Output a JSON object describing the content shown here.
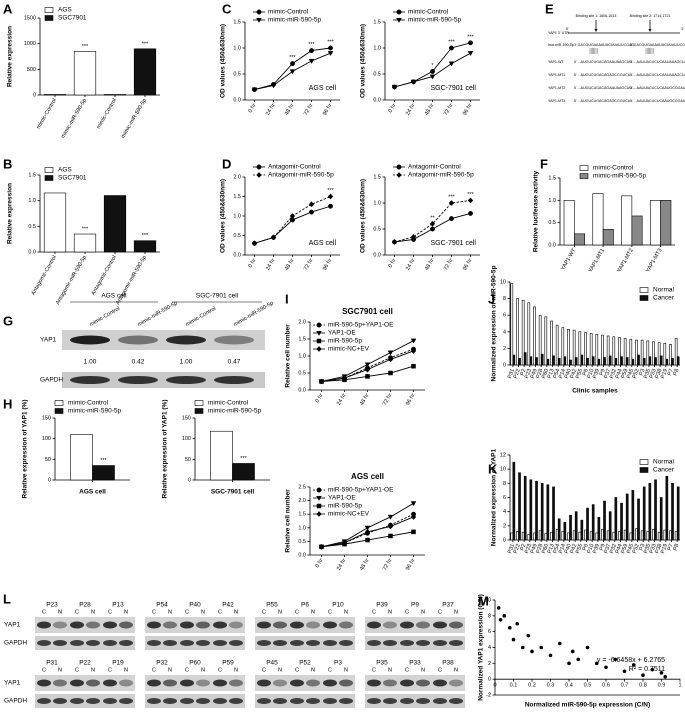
{
  "chart_data": [
    {
      "type": "bar",
      "panel": "A",
      "ylabel": "Relative expression",
      "categories": [
        "mimic-Control",
        "mimic-miR-590-5p",
        "mimic-Control",
        "mimic-miR-590-5p"
      ],
      "series": [
        {
          "name": "AGS",
          "color": "#ffffff",
          "values": [
            10,
            850,
            null,
            null
          ],
          "stars": [
            null,
            "***",
            null,
            null
          ]
        },
        {
          "name": "SGC7901",
          "color": "#111111",
          "values": [
            null,
            null,
            10,
            900
          ],
          "stars": [
            null,
            null,
            null,
            "***"
          ]
        }
      ],
      "ylim": [
        0,
        1500
      ],
      "yticks": [
        0,
        500,
        1000,
        1500
      ]
    },
    {
      "type": "bar",
      "panel": "B",
      "ylabel": "Relative expression",
      "categories": [
        "Antagomir-Control",
        "Antagomir-miR-590-5p",
        "Antagomir-Control",
        "Antagomir-miR-590-5p"
      ],
      "series": [
        {
          "name": "AGS",
          "color": "#ffffff",
          "values": [
            1.15,
            0.35,
            null,
            null
          ],
          "stars": [
            null,
            "***",
            null,
            null
          ]
        },
        {
          "name": "SGC7901",
          "color": "#111111",
          "values": [
            null,
            null,
            1.1,
            0.22
          ],
          "stars": [
            null,
            null,
            null,
            "***"
          ]
        }
      ],
      "ylim": [
        0,
        1.5
      ],
      "yticks": [
        {
          "value": 0,
          "label": "0.0"
        },
        0.5,
        {
          "value": 1,
          "label": "1.0"
        },
        1.5
      ]
    },
    {
      "type": "line",
      "panel": "C",
      "ylabel": "OD values (450&630nm)",
      "annotation": "AGS cell",
      "categories": [
        "0 hr",
        "24 hr",
        "48 hr",
        "72 hr",
        "96 hr"
      ],
      "series": [
        {
          "name": "mimic-Control",
          "color": "#000000",
          "marker": "circle",
          "values": [
            0.2,
            0.3,
            0.7,
            0.95,
            1.0
          ],
          "stars": [
            null,
            null,
            "***",
            "***",
            "***"
          ]
        },
        {
          "name": "mimic-miR-590-5p",
          "color": "#000000",
          "marker": "triangle",
          "values": [
            0.2,
            0.28,
            0.55,
            0.75,
            0.9
          ]
        }
      ],
      "ylim": [
        0,
        1.5
      ],
      "yticks": [
        {
          "value": 0,
          "label": "0.0"
        },
        0.5,
        {
          "value": 1,
          "label": "1.0"
        },
        1.5
      ]
    },
    {
      "type": "line",
      "ylabel": "OD values (450&630nm)",
      "annotation": "SGC-7901 cell",
      "categories": [
        "0 hr",
        "24 hr",
        "48 hr",
        "72 hr",
        "96 hr"
      ],
      "series": [
        {
          "name": "mimic-Control",
          "color": "#000000",
          "marker": "circle",
          "values": [
            0.25,
            0.35,
            0.55,
            1.0,
            1.1
          ],
          "stars": [
            null,
            null,
            "*",
            "***",
            "***"
          ]
        },
        {
          "name": "mimic-miR-590-5p",
          "color": "#000000",
          "marker": "triangle",
          "values": [
            0.25,
            0.35,
            0.45,
            0.7,
            0.9
          ]
        }
      ],
      "ylim": [
        0,
        1.5
      ],
      "yticks": [
        {
          "value": 0,
          "label": "0.0"
        },
        0.5,
        {
          "value": 1,
          "label": "1.0"
        },
        1.5
      ]
    },
    {
      "type": "line",
      "panel": "D",
      "ylabel": "OD values (450&630nm)",
      "annotation": "AGS cell",
      "categories": [
        "0 hr",
        "24 hr",
        "48 hr",
        "72 hr",
        "96 hr"
      ],
      "series": [
        {
          "name": "Antagomir-Control",
          "color": "#000000",
          "marker": "circle",
          "values": [
            0.3,
            0.45,
            0.9,
            1.1,
            1.25
          ]
        },
        {
          "name": "Antagomir-miR-590-5p",
          "color": "#000000",
          "marker": "diamond",
          "dash": true,
          "values": [
            0.3,
            0.45,
            1.0,
            1.3,
            1.5
          ],
          "stars": [
            null,
            null,
            null,
            null,
            "***"
          ]
        }
      ],
      "ylim": [
        0,
        2
      ],
      "yticks": [
        {
          "value": 0,
          "label": "0.0"
        },
        0.5,
        {
          "value": 1,
          "label": "1.0"
        },
        1.5,
        {
          "value": 2,
          "label": "2.0"
        }
      ]
    },
    {
      "type": "line",
      "ylabel": "OD values (450&630nm)",
      "annotation": "SGC-7901 cell",
      "categories": [
        "0 hr",
        "24 hr",
        "48 hr",
        "72 hr",
        "96 hr"
      ],
      "series": [
        {
          "name": "Antagomir-Control",
          "color": "#000000",
          "marker": "circle",
          "values": [
            0.25,
            0.3,
            0.5,
            0.7,
            0.8
          ]
        },
        {
          "name": "Antagomir-miR-590-5p",
          "color": "#000000",
          "marker": "diamond",
          "dash": true,
          "values": [
            0.25,
            0.35,
            0.6,
            1.0,
            1.05
          ],
          "stars": [
            null,
            null,
            "**",
            "***",
            "***"
          ]
        }
      ],
      "ylim": [
        0,
        1.5
      ],
      "yticks": [
        {
          "value": 0,
          "label": "0.0"
        },
        0.5,
        {
          "value": 1,
          "label": "1.0"
        },
        1.5
      ]
    },
    {
      "type": "bar",
      "panel": "F",
      "ylabel": "Relative luciferase activity",
      "categories": [
        "YAP1-WT",
        "YAP1-MT1",
        "YAP1-MT2",
        "YAP1-MT3"
      ],
      "series": [
        {
          "name": "mimic-Control",
          "color": "#ffffff",
          "values": [
            1.0,
            1.15,
            1.1,
            1.0
          ]
        },
        {
          "name": "mimic-miR-590-5p",
          "color": "#888888",
          "values": [
            0.25,
            0.35,
            0.65,
            1.0
          ]
        }
      ],
      "ylim": [
        0,
        1.5
      ],
      "yticks": [
        {
          "value": 0,
          "label": "0.0"
        },
        0.5,
        {
          "value": 1,
          "label": "1.0"
        },
        1.5
      ]
    },
    {
      "type": "bar",
      "panel": "H",
      "ylabel": "Relative expression of YAP1 (%)",
      "xlabel": "AGS cell",
      "categories": [
        null
      ],
      "series": [
        {
          "name": "mimic-Control",
          "color": "#ffffff",
          "values": [
            110
          ]
        },
        {
          "name": "mimic-miR-590-5p",
          "color": "#111111",
          "values": [
            35
          ],
          "stars": [
            "***"
          ]
        }
      ],
      "ylim": [
        0,
        150
      ],
      "yticks": [
        0,
        50,
        100,
        150
      ]
    },
    {
      "type": "bar",
      "ylabel": "Relative expression of YAP1 (%)",
      "xlabel": "SGC-7901 cell",
      "categories": [
        null
      ],
      "series": [
        {
          "name": "mimic-Control",
          "color": "#ffffff",
          "values": [
            118
          ]
        },
        {
          "name": "mimic-miR-590-5p",
          "color": "#111111",
          "values": [
            40
          ],
          "stars": [
            "***"
          ]
        }
      ],
      "ylim": [
        0,
        150
      ],
      "yticks": [
        0,
        50,
        100,
        150
      ]
    },
    {
      "type": "line",
      "panel": "I",
      "title": "SGC7901 cell",
      "ylabel": "Relative cell number",
      "categories": [
        "0 hr",
        "24 hr",
        "48 hr",
        "72 hr",
        "96 hr"
      ],
      "series": [
        {
          "name": "miR-590-5p+YAP1-OE",
          "color": "#000000",
          "marker": "circle",
          "dash": true,
          "values": [
            0.25,
            0.35,
            0.65,
            0.95,
            1.2
          ]
        },
        {
          "name": "YAP1-OE",
          "color": "#000000",
          "marker": "triangle",
          "values": [
            0.25,
            0.4,
            0.75,
            1.1,
            1.45
          ]
        },
        {
          "name": "miR-590-5p",
          "color": "#000000",
          "marker": "square",
          "values": [
            0.25,
            0.3,
            0.4,
            0.5,
            0.7
          ]
        },
        {
          "name": "mimic-NC+EV",
          "color": "#000000",
          "marker": "diamond",
          "values": [
            0.25,
            0.35,
            0.6,
            0.9,
            1.15
          ]
        }
      ],
      "ylim": [
        0,
        2
      ],
      "yticks": [
        {
          "value": 0,
          "label": "0.0"
        },
        0.5,
        {
          "value": 1,
          "label": "1.0"
        },
        1.5,
        {
          "value": 2,
          "label": "2.0"
        }
      ]
    },
    {
      "type": "line",
      "title": "AGS cell",
      "ylabel": "Relative cell number",
      "categories": [
        "0 hr",
        "24 hr",
        "48 hr",
        "72 hr",
        "96 hr"
      ],
      "series": [
        {
          "name": "miR-590-5p+YAP1-OE",
          "color": "#000000",
          "marker": "circle",
          "dash": true,
          "values": [
            0.3,
            0.45,
            0.8,
            1.1,
            1.5
          ]
        },
        {
          "name": "YAP1-OE",
          "color": "#000000",
          "marker": "triangle",
          "values": [
            0.3,
            0.5,
            1.0,
            1.4,
            1.9
          ]
        },
        {
          "name": "miR-590-5p",
          "color": "#000000",
          "marker": "square",
          "values": [
            0.3,
            0.4,
            0.55,
            0.7,
            0.85
          ]
        },
        {
          "name": "mimic-NC+EV",
          "color": "#000000",
          "marker": "diamond",
          "values": [
            0.3,
            0.45,
            0.85,
            1.05,
            1.4
          ]
        }
      ],
      "ylim": [
        0,
        2.5
      ],
      "yticks": [
        {
          "value": 0,
          "label": "0.0"
        },
        0.5,
        {
          "value": 1,
          "label": "1.0"
        },
        1.5,
        {
          "value": 2,
          "label": "2.0"
        },
        2.5
      ]
    },
    {
      "type": "bar",
      "panel": "J",
      "ylabel": "Normalized expression of miR-590-5p",
      "xlabel": "Clinic samples",
      "categories": [
        "P31",
        "P22",
        "P2",
        "P23",
        "P49",
        "P28",
        "P60",
        "P13",
        "P54",
        "P14",
        "P40",
        "P42",
        "P55",
        "P6",
        "P10",
        "P39",
        "P9",
        "P37",
        "P32",
        "P44",
        "P59",
        "P45",
        "P52",
        "P3",
        "P35",
        "P33",
        "P38",
        "P19",
        "P7",
        "P8"
      ],
      "series": [
        {
          "name": "Normal",
          "color": "#ffffff",
          "values": [
            9.8,
            8.0,
            7.8,
            7.5,
            7.0,
            6.0,
            5.8,
            5.3,
            4.8,
            4.5,
            4.3,
            4.2,
            4.0,
            3.9,
            3.8,
            3.7,
            3.6,
            3.5,
            3.4,
            3.3,
            3.2,
            3.1,
            3.0,
            3.0,
            2.9,
            2.8,
            2.7,
            2.6,
            2.5,
            3.2
          ]
        },
        {
          "name": "Cancer",
          "color": "#111111",
          "values": [
            1.2,
            0.8,
            1.5,
            1.0,
            0.9,
            1.3,
            0.7,
            1.1,
            0.8,
            1.0,
            0.6,
            0.9,
            1.2,
            0.8,
            1.0,
            0.7,
            0.9,
            1.1,
            0.8,
            1.0,
            0.9,
            0.7,
            1.2,
            0.8,
            1.0,
            0.9,
            1.1,
            0.7,
            0.8,
            1.0
          ]
        }
      ],
      "ylim": [
        0,
        10
      ],
      "yticks": [
        0,
        2,
        4,
        6,
        8,
        10
      ]
    },
    {
      "type": "bar",
      "panel": "K",
      "ylabel": "Normalized expression of YAP1",
      "categories": [
        "P31",
        "P22",
        "P2",
        "P23",
        "P49",
        "P28",
        "P60",
        "P13",
        "P54",
        "P14",
        "P40",
        "P42",
        "P55",
        "P6",
        "P10",
        "P39",
        "P9",
        "P37",
        "P32",
        "P44",
        "P59",
        "P45",
        "P52",
        "P3",
        "P35",
        "P33",
        "P38",
        "P19",
        "P7",
        "P8"
      ],
      "series": [
        {
          "name": "Normal",
          "color": "#ffffff",
          "values": [
            1,
            1.2,
            1.1,
            0.8,
            1,
            1.3,
            0.9,
            1.1,
            1.5,
            1.2,
            1,
            1.3,
            1.1,
            1.4,
            1.2,
            1,
            1.5,
            1.3,
            1.1,
            1.2,
            1.4,
            1,
            1.6,
            1.3,
            1.2,
            1.5,
            1.1,
            1.4,
            1.3,
            1.2
          ]
        },
        {
          "name": "Cancer",
          "color": "#111111",
          "values": [
            11,
            9.5,
            9,
            8.5,
            8.3,
            8,
            7.8,
            7.5,
            3,
            2.5,
            3.5,
            4,
            2.8,
            4.5,
            5,
            3.2,
            5.5,
            4,
            6,
            5.2,
            6.5,
            7,
            5.8,
            7.5,
            8,
            8.5,
            6,
            9,
            8,
            7.5
          ]
        }
      ],
      "ylim": [
        0,
        12
      ],
      "yticks": [
        0,
        2,
        4,
        6,
        8,
        10,
        12
      ]
    },
    {
      "type": "scatter",
      "panel": "M",
      "xlabel": "Normalized miR-590-5p expression (C/N)",
      "ylabel": "Normalized YAP1 expression (C/N)",
      "annotation": "y = -6.6458x + 6.2765",
      "annotation2": "R² = 0.7511",
      "x": [
        0.02,
        0.03,
        0.05,
        0.08,
        0.1,
        0.12,
        0.15,
        0.18,
        0.2,
        0.25,
        0.3,
        0.35,
        0.4,
        0.42,
        0.45,
        0.5,
        0.55,
        0.6,
        0.65,
        0.7,
        0.75,
        0.8,
        0.85,
        0.9,
        0.92
      ],
      "y": [
        9,
        7.5,
        8,
        6.5,
        5,
        7,
        4,
        5.5,
        3.5,
        4,
        3,
        4.5,
        2,
        3.5,
        2.5,
        4,
        2,
        1.5,
        2.5,
        1,
        1.8,
        0.5,
        1.2,
        0.8,
        0.3
      ],
      "color": "#000000",
      "xlim": [
        0,
        1
      ],
      "xticks": [
        0,
        0.1,
        0.2,
        0.3,
        0.4,
        0.5,
        0.6,
        0.7,
        0.8,
        0.9,
        1
      ],
      "ylim": [
        -2,
        10
      ],
      "yticks": [
        -2,
        0,
        2,
        4,
        6,
        8,
        10
      ]
    }
  ],
  "diagram_E": {
    "panel": "E",
    "utr": "YAP1 3' UTR",
    "end5": "5'",
    "end3": "3'",
    "site1": "Binding site 1: 1606-1613",
    "site2": "Binding site 2: 1714-1721",
    "rows": [
      {
        "label": "hsa-miR-590-5p",
        "seq1": "3' GACGUGAAAAUACUUAUUCGAG",
        "seq2": "3' GACGUGAAAAUACUUAUUCGAG"
      },
      {
        "label": "YAP1-WT",
        "seq1": "5' ...AUGUCUGACAGAAUAAGCUU...",
        "seq2": "5' ...AAUUACUCUCAAUAAAGCUA..."
      },
      {
        "label": "YAP1-MT1",
        "seq1": "5' ...AUGUCUGACAGAGCGGUCU...",
        "seq2": "5' ...AAUUACUCUCAAUAAAGCUA..."
      },
      {
        "label": "YAP1-MT2",
        "seq1": "5' ...AUGUCUGACAGAAUAAGCUU...",
        "seq2": "5' ...AAUUACUCUCAAUGCGGAUCG..."
      },
      {
        "label": "YAP1-MT3",
        "seq1": "5' ...AUGUCUGACAGAGCGGUCU...",
        "seq2": "5' ...AAUUACUCUCAAUGCGGAUCG..."
      }
    ]
  },
  "blot_G": {
    "panel": "G",
    "groups": [
      "AGS cell",
      "SGC-7901 cell"
    ],
    "lanes": [
      "mimic-Control",
      "mimic-miR-590-5p",
      "mimic-Control",
      "mimic-miR-590-5p"
    ],
    "proteins": [
      "YAP1",
      "GAPDH"
    ],
    "ratios": [
      "1.00",
      "0.42",
      "1.00",
      "0.47"
    ]
  },
  "blot_L": {
    "panel": "L",
    "blocks": [
      [
        "P23",
        "P28",
        "P13"
      ],
      [
        "P54",
        "P40",
        "P42"
      ],
      [
        "P55",
        "P6",
        "P10"
      ],
      [
        "P39",
        "P9",
        "P37"
      ],
      [
        "P31",
        "P22",
        "P19"
      ],
      [
        "P32",
        "P60",
        "P59"
      ],
      [
        "P45",
        "P52",
        "P3"
      ],
      [
        "P35",
        "P33",
        "P38"
      ]
    ],
    "lanes": [
      "C",
      "N"
    ],
    "proteins": [
      "YAP1",
      "GAPDH"
    ]
  }
}
